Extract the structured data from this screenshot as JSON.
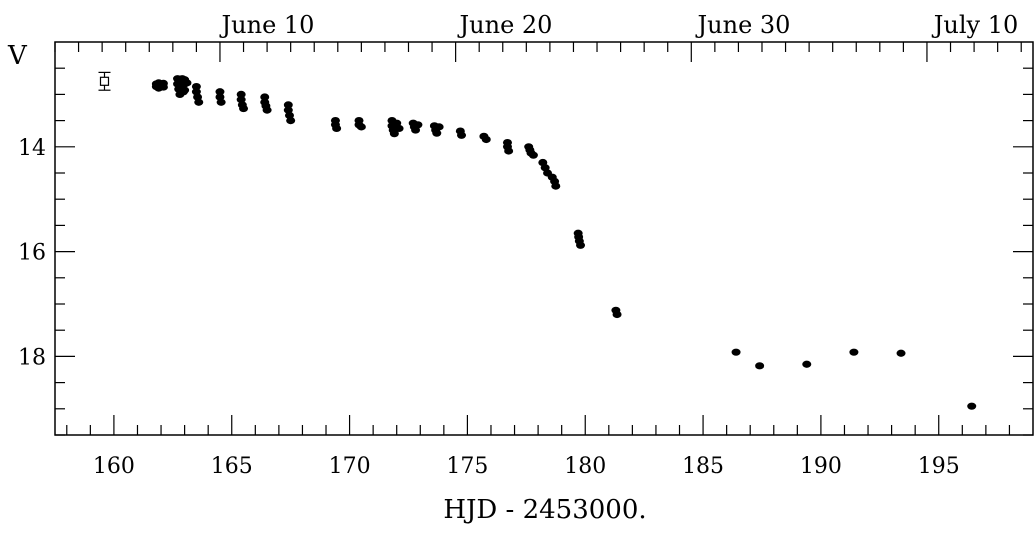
{
  "chart_data": {
    "type": "scatter",
    "xlabel": "HJD - 2453000.",
    "ylabel": "V",
    "xlim": [
      157.5,
      199
    ],
    "ylim": [
      19.5,
      12.0
    ],
    "y_inverted": true,
    "x_ticks": [
      160,
      165,
      170,
      175,
      180,
      185,
      190,
      195
    ],
    "y_ticks": [
      14,
      16,
      18
    ],
    "top_axis_labels": [
      {
        "label": "June 10",
        "x": 164.5
      },
      {
        "label": "June 20",
        "x": 174.5
      },
      {
        "label": "June 30",
        "x": 184.5
      },
      {
        "label": "July 10",
        "x": 194.5
      }
    ],
    "error_bar_example": {
      "x": 159.6,
      "y": 12.75,
      "yerr": 0.17
    },
    "points": [
      {
        "x": 161.8,
        "y": 12.8
      },
      {
        "x": 161.8,
        "y": 12.85
      },
      {
        "x": 161.9,
        "y": 12.78
      },
      {
        "x": 161.9,
        "y": 12.88
      },
      {
        "x": 162.0,
        "y": 12.82
      },
      {
        "x": 162.1,
        "y": 12.79
      },
      {
        "x": 162.1,
        "y": 12.86
      },
      {
        "x": 162.7,
        "y": 12.7
      },
      {
        "x": 162.7,
        "y": 12.8
      },
      {
        "x": 162.75,
        "y": 12.9
      },
      {
        "x": 162.8,
        "y": 12.75
      },
      {
        "x": 162.8,
        "y": 13.0
      },
      {
        "x": 162.9,
        "y": 12.7
      },
      {
        "x": 162.9,
        "y": 12.85
      },
      {
        "x": 162.95,
        "y": 12.95
      },
      {
        "x": 163.0,
        "y": 12.72
      },
      {
        "x": 163.0,
        "y": 12.8
      },
      {
        "x": 163.0,
        "y": 12.92
      },
      {
        "x": 163.1,
        "y": 12.78
      },
      {
        "x": 163.5,
        "y": 12.85
      },
      {
        "x": 163.5,
        "y": 12.95
      },
      {
        "x": 163.55,
        "y": 13.05
      },
      {
        "x": 163.6,
        "y": 13.15
      },
      {
        "x": 164.5,
        "y": 12.95
      },
      {
        "x": 164.5,
        "y": 13.05
      },
      {
        "x": 164.55,
        "y": 13.15
      },
      {
        "x": 165.4,
        "y": 13.0
      },
      {
        "x": 165.4,
        "y": 13.1
      },
      {
        "x": 165.45,
        "y": 13.2
      },
      {
        "x": 165.5,
        "y": 13.27
      },
      {
        "x": 166.4,
        "y": 13.05
      },
      {
        "x": 166.4,
        "y": 13.15
      },
      {
        "x": 166.45,
        "y": 13.22
      },
      {
        "x": 166.5,
        "y": 13.3
      },
      {
        "x": 167.4,
        "y": 13.2
      },
      {
        "x": 167.4,
        "y": 13.3
      },
      {
        "x": 167.45,
        "y": 13.4
      },
      {
        "x": 167.5,
        "y": 13.5
      },
      {
        "x": 169.4,
        "y": 13.5
      },
      {
        "x": 169.4,
        "y": 13.58
      },
      {
        "x": 169.45,
        "y": 13.65
      },
      {
        "x": 170.4,
        "y": 13.5
      },
      {
        "x": 170.4,
        "y": 13.58
      },
      {
        "x": 170.5,
        "y": 13.62
      },
      {
        "x": 171.8,
        "y": 13.5
      },
      {
        "x": 171.8,
        "y": 13.6
      },
      {
        "x": 171.85,
        "y": 13.68
      },
      {
        "x": 171.9,
        "y": 13.75
      },
      {
        "x": 172.0,
        "y": 13.55
      },
      {
        "x": 172.1,
        "y": 13.65
      },
      {
        "x": 172.7,
        "y": 13.55
      },
      {
        "x": 172.75,
        "y": 13.62
      },
      {
        "x": 172.8,
        "y": 13.68
      },
      {
        "x": 172.9,
        "y": 13.58
      },
      {
        "x": 173.6,
        "y": 13.6
      },
      {
        "x": 173.65,
        "y": 13.68
      },
      {
        "x": 173.7,
        "y": 13.74
      },
      {
        "x": 173.8,
        "y": 13.62
      },
      {
        "x": 174.7,
        "y": 13.7
      },
      {
        "x": 174.75,
        "y": 13.78
      },
      {
        "x": 175.7,
        "y": 13.8
      },
      {
        "x": 175.8,
        "y": 13.86
      },
      {
        "x": 176.7,
        "y": 13.92
      },
      {
        "x": 176.7,
        "y": 14.0
      },
      {
        "x": 176.75,
        "y": 14.08
      },
      {
        "x": 177.6,
        "y": 14.0
      },
      {
        "x": 177.65,
        "y": 14.06
      },
      {
        "x": 177.7,
        "y": 14.12
      },
      {
        "x": 177.8,
        "y": 14.16
      },
      {
        "x": 178.2,
        "y": 14.3
      },
      {
        "x": 178.3,
        "y": 14.4
      },
      {
        "x": 178.4,
        "y": 14.5
      },
      {
        "x": 178.6,
        "y": 14.58
      },
      {
        "x": 178.7,
        "y": 14.66
      },
      {
        "x": 178.75,
        "y": 14.75
      },
      {
        "x": 179.7,
        "y": 15.65
      },
      {
        "x": 179.72,
        "y": 15.72
      },
      {
        "x": 179.75,
        "y": 15.8
      },
      {
        "x": 179.8,
        "y": 15.88
      },
      {
        "x": 181.3,
        "y": 17.12
      },
      {
        "x": 181.35,
        "y": 17.2
      },
      {
        "x": 186.4,
        "y": 17.92
      },
      {
        "x": 187.4,
        "y": 18.18
      },
      {
        "x": 189.4,
        "y": 18.15
      },
      {
        "x": 191.4,
        "y": 17.92
      },
      {
        "x": 193.4,
        "y": 17.94
      },
      {
        "x": 196.4,
        "y": 18.95
      }
    ]
  }
}
